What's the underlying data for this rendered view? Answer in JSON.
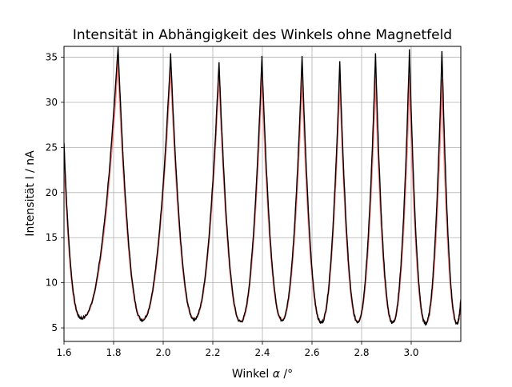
{
  "chart_data": {
    "type": "line",
    "title": "Intensität in Abhängigkeit des Winkels ohne Magnetfeld",
    "xlabel_prefix": "Winkel ",
    "xlabel_symbol": "α",
    "xlabel_suffix": " /°",
    "ylabel": "Intensität I / nA",
    "xlim": [
      1.6,
      3.2
    ],
    "ylim": [
      3.5,
      36.2
    ],
    "xticks": [
      1.6,
      1.8,
      2.0,
      2.2,
      2.4,
      2.6,
      2.8,
      3.0
    ],
    "xtick_labels": [
      "1.6",
      "1.8",
      "2.0",
      "2.2",
      "2.4",
      "2.6",
      "2.8",
      "3.0"
    ],
    "yticks": [
      5,
      10,
      15,
      20,
      25,
      30,
      35
    ],
    "ytick_labels": [
      "5",
      "10",
      "15",
      "20",
      "25",
      "30",
      "35"
    ],
    "grid": true,
    "legend": "none",
    "peaks": [
      {
        "x": 1.818,
        "measured_max": 36.2,
        "fit_max": 34.8
      },
      {
        "x": 2.03,
        "measured_max": 35.3,
        "fit_max": 34.2
      },
      {
        "x": 2.225,
        "measured_max": 34.5,
        "fit_max": 33.5
      },
      {
        "x": 2.398,
        "measured_max": 35.1,
        "fit_max": 33.5
      },
      {
        "x": 2.56,
        "measured_max": 35.2,
        "fit_max": 33.2
      },
      {
        "x": 2.712,
        "measured_max": 34.4,
        "fit_max": 33.0
      },
      {
        "x": 2.856,
        "measured_max": 35.3,
        "fit_max": 33.0
      },
      {
        "x": 2.993,
        "measured_max": 35.8,
        "fit_max": 33.0
      },
      {
        "x": 3.124,
        "measured_max": 35.8,
        "fit_max": 32.6
      }
    ],
    "minima": [
      {
        "x": 1.672,
        "y": 6.1
      },
      {
        "x": 1.915,
        "y": 5.9
      },
      {
        "x": 2.125,
        "y": 6.0
      },
      {
        "x": 2.312,
        "y": 5.7
      },
      {
        "x": 2.479,
        "y": 5.9
      },
      {
        "x": 2.637,
        "y": 5.6
      },
      {
        "x": 2.784,
        "y": 5.7
      },
      {
        "x": 2.925,
        "y": 5.6
      },
      {
        "x": 3.058,
        "y": 5.5
      },
      {
        "x": 3.185,
        "y": 5.5
      }
    ],
    "series": [
      {
        "color": "#000000",
        "style": "measured"
      },
      {
        "color": "#ff6666",
        "style": "fit"
      }
    ]
  }
}
